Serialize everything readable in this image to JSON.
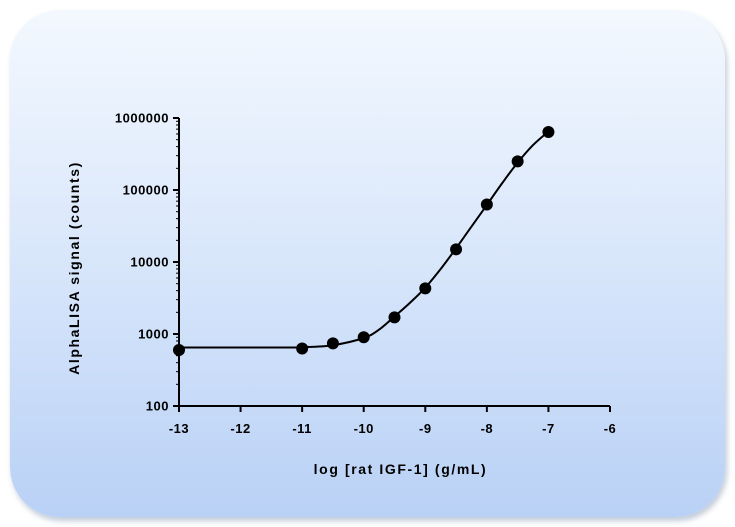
{
  "chart_data": {
    "type": "scatter",
    "title": "",
    "xlabel": "log [rat IGF-1] (g/mL)",
    "ylabel": "AlphaLISA signal (counts)",
    "xlim": [
      -13,
      -6
    ],
    "ylim": [
      100,
      1000000
    ],
    "yscale": "log",
    "x_ticks": [
      -13,
      -12,
      -11,
      -10,
      -9,
      -8,
      -7,
      -6
    ],
    "x_tick_labels": [
      "-13",
      "-12",
      "-11",
      "-10",
      "-9",
      "-8",
      "-7",
      "-6"
    ],
    "y_ticks": [
      100,
      1000,
      10000,
      100000,
      1000000
    ],
    "y_tick_labels": [
      "100",
      "1000",
      "10000",
      "100000",
      "1000000"
    ],
    "grid": false,
    "series": [
      {
        "points": [
          {
            "x": -13,
            "y": 600
          },
          {
            "x": -11,
            "y": 630
          },
          {
            "x": -10.5,
            "y": 740
          },
          {
            "x": -10,
            "y": 900
          },
          {
            "x": -9.5,
            "y": 1700
          },
          {
            "x": -9,
            "y": 4300
          },
          {
            "x": -8.5,
            "y": 15000
          },
          {
            "x": -8,
            "y": 63000
          },
          {
            "x": -7.5,
            "y": 250000
          },
          {
            "x": -7,
            "y": 640000
          }
        ],
        "fit_curve": [
          {
            "x": -13,
            "y": 650
          },
          {
            "x": -11.5,
            "y": 650
          },
          {
            "x": -11,
            "y": 655
          },
          {
            "x": -10.5,
            "y": 700
          },
          {
            "x": -10,
            "y": 880
          },
          {
            "x": -9.75,
            "y": 1150
          },
          {
            "x": -9.5,
            "y": 1750
          },
          {
            "x": -9.25,
            "y": 2700
          },
          {
            "x": -9,
            "y": 4400
          },
          {
            "x": -8.75,
            "y": 8000
          },
          {
            "x": -8.5,
            "y": 15500
          },
          {
            "x": -8.25,
            "y": 31000
          },
          {
            "x": -8,
            "y": 62000
          },
          {
            "x": -7.75,
            "y": 125000
          },
          {
            "x": -7.5,
            "y": 240000
          },
          {
            "x": -7.25,
            "y": 420000
          },
          {
            "x": -7,
            "y": 650000
          }
        ]
      }
    ]
  }
}
